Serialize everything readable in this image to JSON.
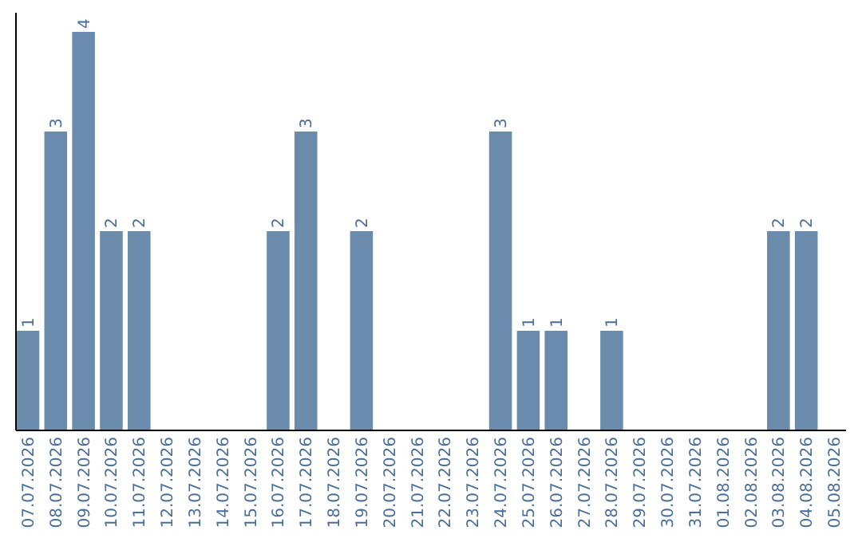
{
  "chart_data": {
    "type": "bar",
    "categories": [
      "07.07.2026",
      "08.07.2026",
      "09.07.2026",
      "10.07.2026",
      "11.07.2026",
      "12.07.2026",
      "13.07.2026",
      "14.07.2026",
      "15.07.2026",
      "16.07.2026",
      "17.07.2026",
      "18.07.2026",
      "19.07.2026",
      "20.07.2026",
      "21.07.2026",
      "22.07.2026",
      "23.07.2026",
      "24.07.2026",
      "25.07.2026",
      "26.07.2026",
      "27.07.2026",
      "28.07.2026",
      "29.07.2026",
      "30.07.2026",
      "31.07.2026",
      "01.08.2026",
      "02.08.2026",
      "03.08.2026",
      "04.08.2026",
      "05.08.2026"
    ],
    "values": [
      1,
      3,
      4,
      2,
      2,
      0,
      0,
      0,
      0,
      2,
      3,
      0,
      2,
      0,
      0,
      0,
      0,
      3,
      1,
      1,
      0,
      1,
      0,
      0,
      0,
      0,
      0,
      2,
      2,
      0
    ],
    "value_labels": [
      "1",
      "3",
      "4",
      "2",
      "2",
      null,
      null,
      null,
      null,
      "2",
      "3",
      null,
      "2",
      null,
      null,
      null,
      null,
      "3",
      "1",
      "1",
      null,
      "1",
      null,
      null,
      null,
      null,
      null,
      "2",
      "2",
      null
    ],
    "color": "#6a8bab"
  }
}
